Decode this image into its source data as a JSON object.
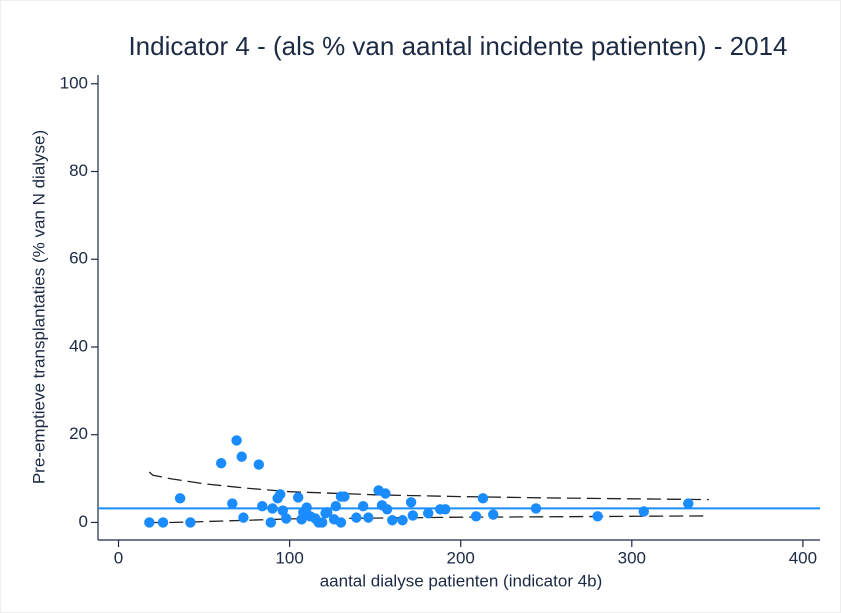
{
  "chart_data": {
    "type": "scatter",
    "title": "Indicator 4 - (als % van aantal incidente patienten) - 2014",
    "x_label": "aantal dialyse patienten (indicator 4b)",
    "y_label": "Pre-emptieve transplantaties (% van N dialyse)",
    "x": [
      18,
      26,
      36,
      42,
      60,
      66.5,
      69,
      72,
      73,
      82,
      84,
      89,
      90,
      93,
      94.5,
      96,
      98,
      105,
      107,
      108,
      110,
      112,
      115,
      117,
      119,
      121,
      122,
      126,
      127,
      130,
      130,
      132,
      139,
      143,
      146,
      152,
      156,
      154,
      157,
      160,
      166,
      171,
      172,
      181,
      188,
      191,
      209,
      213,
      219,
      244,
      280,
      307,
      333
    ],
    "y": [
      0,
      0,
      5.5,
      0,
      13.5,
      4.3,
      18.7,
      15,
      1.1,
      13.2,
      3.7,
      0,
      3.2,
      5.5,
      6.4,
      2.7,
      0.9,
      5.7,
      0.7,
      2.3,
      3.4,
      1.4,
      0.9,
      0,
      0,
      2.1,
      2.3,
      0.7,
      3.7,
      0,
      5.9,
      5.9,
      1.1,
      3.7,
      1.1,
      7.3,
      6.6,
      3.9,
      3.0,
      0.5,
      0.5,
      4.6,
      1.6,
      2.1,
      3.0,
      3.0,
      1.4,
      5.5,
      1.8,
      3.2,
      1.4,
      2.5,
      4.3
    ],
    "color": "#1a8cff",
    "reference_line": 3.2,
    "reference_color": "#1a8cff",
    "funnel_upper": {
      "x": [
        18,
        20,
        30,
        50,
        75,
        100,
        150,
        200,
        250,
        300,
        345
      ],
      "y": [
        11.5,
        10.8,
        10,
        8.8,
        7.8,
        7.0,
        6.3,
        5.9,
        5.6,
        5.4,
        5.2
      ]
    },
    "funnel_lower": {
      "x": [
        18,
        30,
        50,
        75,
        100,
        150,
        200,
        250,
        300,
        345
      ],
      "y": [
        0,
        0,
        0.2,
        0.5,
        0.8,
        1.0,
        1.2,
        1.3,
        1.4,
        1.5
      ]
    },
    "funnel_color": "#222222",
    "xlim": [
      -12,
      410
    ],
    "ylim": [
      -4,
      102
    ],
    "xticks": [
      0,
      100,
      200,
      300,
      400
    ],
    "yticks": [
      0,
      20,
      40,
      60,
      80,
      100
    ]
  }
}
